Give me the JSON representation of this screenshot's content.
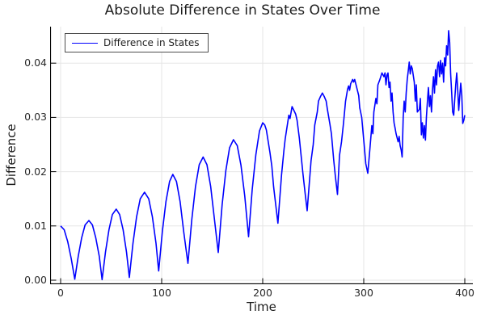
{
  "chart": {
    "title": "Absolute Difference in States Over Time",
    "xlabel": "Time",
    "ylabel": "Difference",
    "legend_label": "Difference in States",
    "colors": {
      "line": "#0000ff",
      "grid": "#e6e6e6",
      "axis": "#000000",
      "title_text": "#1c1c1c",
      "tick_text": "#2a2a2a",
      "legend_border": "#4d4d4d",
      "background": "#ffffff"
    }
  },
  "chart_data": {
    "type": "line",
    "title": "Absolute Difference in States Over Time",
    "xlabel": "Time",
    "ylabel": "Difference",
    "xlim": [
      -10.4,
      408
    ],
    "ylim": [
      -0.0007,
      0.0467
    ],
    "xticks": [
      0,
      100,
      200,
      300,
      400
    ],
    "xtick_labels": [
      "0",
      "100",
      "200",
      "300",
      "400"
    ],
    "yticks": [
      0,
      0.01,
      0.02,
      0.03,
      0.04
    ],
    "ytick_labels": [
      "0.00",
      "0.01",
      "0.02",
      "0.03",
      "0.04"
    ],
    "grid": true,
    "legend_position": "top-left",
    "series": [
      {
        "name": "Difference in States",
        "color": "#0000ff",
        "points": [
          [
            0,
            0.01
          ],
          [
            3.5,
            0.0093
          ],
          [
            7,
            0.0071
          ],
          [
            10.5,
            0.004
          ],
          [
            14,
            0.0002
          ],
          [
            17.4,
            0.0044
          ],
          [
            20.8,
            0.0078
          ],
          [
            24.2,
            0.0102
          ],
          [
            28,
            0.011
          ],
          [
            31.4,
            0.0102
          ],
          [
            34.8,
            0.0078
          ],
          [
            38.2,
            0.0044
          ],
          [
            41,
            0.0001
          ],
          [
            44.4,
            0.0052
          ],
          [
            47.8,
            0.0093
          ],
          [
            51.2,
            0.0121
          ],
          [
            55,
            0.0131
          ],
          [
            58.4,
            0.0121
          ],
          [
            61.8,
            0.0093
          ],
          [
            65.2,
            0.0052
          ],
          [
            68,
            0.0005
          ],
          [
            71.6,
            0.0068
          ],
          [
            75.2,
            0.0117
          ],
          [
            78.8,
            0.015
          ],
          [
            83,
            0.0162
          ],
          [
            87.2,
            0.015
          ],
          [
            90.8,
            0.0117
          ],
          [
            94.4,
            0.0068
          ],
          [
            97,
            0.0017
          ],
          [
            100.6,
            0.0089
          ],
          [
            104.2,
            0.0145
          ],
          [
            107.8,
            0.0182
          ],
          [
            111,
            0.0195
          ],
          [
            114.6,
            0.0182
          ],
          [
            118.2,
            0.0145
          ],
          [
            121.8,
            0.0089
          ],
          [
            126,
            0.0031
          ],
          [
            129.8,
            0.0112
          ],
          [
            133.5,
            0.0173
          ],
          [
            137.2,
            0.0213
          ],
          [
            141,
            0.0227
          ],
          [
            144.8,
            0.0213
          ],
          [
            148.5,
            0.0173
          ],
          [
            152.2,
            0.0112
          ],
          [
            156,
            0.0051
          ],
          [
            159.8,
            0.0139
          ],
          [
            163.5,
            0.0202
          ],
          [
            167.2,
            0.0244
          ],
          [
            171,
            0.0259
          ],
          [
            174.8,
            0.0248
          ],
          [
            178.5,
            0.0212
          ],
          [
            182.2,
            0.0155
          ],
          [
            186,
            0.008
          ],
          [
            189.6,
            0.0167
          ],
          [
            193.2,
            0.0231
          ],
          [
            196.8,
            0.0275
          ],
          [
            200,
            0.029
          ],
          [
            202,
            0.0286
          ],
          [
            203.6,
            0.0277
          ],
          [
            207.2,
            0.0235
          ],
          [
            209,
            0.021
          ],
          [
            210.8,
            0.0172
          ],
          [
            215,
            0.0105
          ],
          [
            218.6,
            0.0194
          ],
          [
            221,
            0.024
          ],
          [
            222.2,
            0.026
          ],
          [
            225.8,
            0.0304
          ],
          [
            227,
            0.0298
          ],
          [
            229,
            0.032
          ],
          [
            232.6,
            0.0306
          ],
          [
            234,
            0.0295
          ],
          [
            236.2,
            0.0262
          ],
          [
            239.8,
            0.0196
          ],
          [
            242,
            0.016
          ],
          [
            244,
            0.0128
          ],
          [
            247.8,
            0.022
          ],
          [
            250,
            0.025
          ],
          [
            251.5,
            0.0286
          ],
          [
            254,
            0.031
          ],
          [
            255.2,
            0.033
          ],
          [
            257,
            0.0338
          ],
          [
            259,
            0.0345
          ],
          [
            261,
            0.0338
          ],
          [
            262.8,
            0.033
          ],
          [
            264,
            0.0315
          ],
          [
            266.5,
            0.0288
          ],
          [
            268,
            0.027
          ],
          [
            270.2,
            0.0222
          ],
          [
            272,
            0.019
          ],
          [
            274,
            0.0158
          ],
          [
            276,
            0.023
          ],
          [
            278,
            0.0255
          ],
          [
            280,
            0.029
          ],
          [
            282,
            0.033
          ],
          [
            284,
            0.0352
          ],
          [
            285,
            0.0358
          ],
          [
            286,
            0.035
          ],
          [
            287,
            0.0362
          ],
          [
            289,
            0.037
          ],
          [
            290,
            0.0365
          ],
          [
            291,
            0.037
          ],
          [
            293,
            0.0355
          ],
          [
            295,
            0.034
          ],
          [
            296,
            0.0318
          ],
          [
            298,
            0.03
          ],
          [
            300,
            0.0258
          ],
          [
            302,
            0.0215
          ],
          [
            304,
            0.0197
          ],
          [
            306,
            0.024
          ],
          [
            308,
            0.0285
          ],
          [
            309,
            0.027
          ],
          [
            310,
            0.031
          ],
          [
            312,
            0.0335
          ],
          [
            313,
            0.0325
          ],
          [
            314,
            0.036
          ],
          [
            316,
            0.037
          ],
          [
            318,
            0.0382
          ],
          [
            320,
            0.0375
          ],
          [
            321,
            0.0382
          ],
          [
            322,
            0.036
          ],
          [
            323,
            0.0378
          ],
          [
            324,
            0.0382
          ],
          [
            325,
            0.0355
          ],
          [
            326,
            0.0365
          ],
          [
            327,
            0.033
          ],
          [
            328,
            0.0345
          ],
          [
            329,
            0.031
          ],
          [
            330,
            0.029
          ],
          [
            331,
            0.028
          ],
          [
            332,
            0.027
          ],
          [
            334,
            0.0255
          ],
          [
            335,
            0.0265
          ],
          [
            336,
            0.0248
          ],
          [
            337,
            0.024
          ],
          [
            338,
            0.0227
          ],
          [
            339,
            0.03
          ],
          [
            340,
            0.033
          ],
          [
            341,
            0.031
          ],
          [
            342,
            0.0345
          ],
          [
            343,
            0.037
          ],
          [
            344,
            0.0385
          ],
          [
            345,
            0.0402
          ],
          [
            346,
            0.038
          ],
          [
            347,
            0.0395
          ],
          [
            348,
            0.039
          ],
          [
            350,
            0.0365
          ],
          [
            351,
            0.033
          ],
          [
            352,
            0.036
          ],
          [
            353,
            0.031
          ],
          [
            355,
            0.0315
          ],
          [
            356,
            0.0335
          ],
          [
            357,
            0.0268
          ],
          [
            358,
            0.029
          ],
          [
            359,
            0.0262
          ],
          [
            360,
            0.0285
          ],
          [
            361,
            0.0258
          ],
          [
            362,
            0.03
          ],
          [
            363,
            0.033
          ],
          [
            364,
            0.0355
          ],
          [
            365,
            0.032
          ],
          [
            366,
            0.034
          ],
          [
            367,
            0.031
          ],
          [
            368,
            0.035
          ],
          [
            369,
            0.0375
          ],
          [
            370,
            0.0345
          ],
          [
            371,
            0.0388
          ],
          [
            372,
            0.036
          ],
          [
            373,
            0.0395
          ],
          [
            374,
            0.0402
          ],
          [
            375,
            0.0375
          ],
          [
            376,
            0.0405
          ],
          [
            377,
            0.038
          ],
          [
            378,
            0.04
          ],
          [
            379,
            0.0365
          ],
          [
            380,
            0.041
          ],
          [
            381,
            0.0395
          ],
          [
            382,
            0.0432
          ],
          [
            383,
            0.0415
          ],
          [
            384,
            0.046
          ],
          [
            385,
            0.0438
          ],
          [
            386,
            0.038
          ],
          [
            387,
            0.0345
          ],
          [
            388,
            0.031
          ],
          [
            389,
            0.0304
          ],
          [
            390,
            0.0332
          ],
          [
            391,
            0.036
          ],
          [
            392,
            0.0382
          ],
          [
            393,
            0.035
          ],
          [
            394,
            0.0313
          ],
          [
            395,
            0.034
          ],
          [
            396,
            0.0363
          ],
          [
            397,
            0.034
          ],
          [
            398,
            0.0289
          ],
          [
            399,
            0.0295
          ],
          [
            400,
            0.0304
          ]
        ]
      }
    ]
  }
}
